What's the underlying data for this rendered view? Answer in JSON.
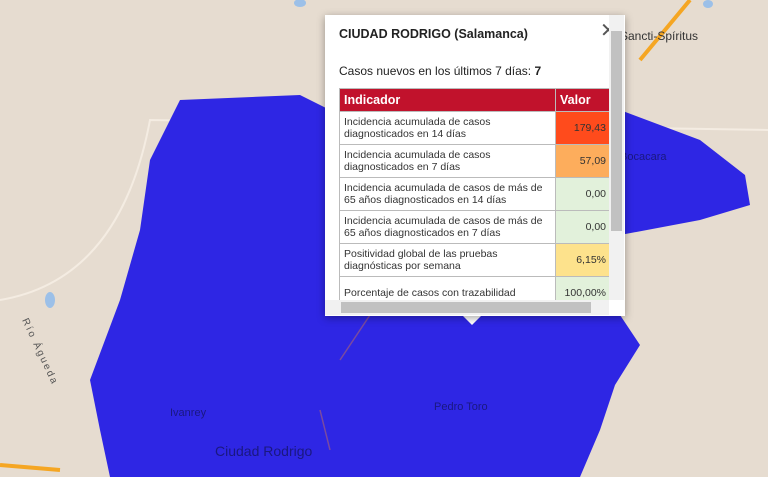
{
  "map": {
    "labels": {
      "town_ne": "Sancti-Spíritus",
      "town_e": "Bocacara",
      "river": "Río Águeda",
      "town_w": "Ivanrey",
      "town_s": "Pedro Toro",
      "city": "Ciudad Rodrigo"
    }
  },
  "popup": {
    "title": "CIUDAD RODRIGO (Salamanca)",
    "cases_label": "Casos nuevos en los últimos 7 días:",
    "cases_value": "7",
    "table": {
      "header": [
        "Indicador",
        "Valor"
      ],
      "rows": [
        {
          "indicator": "Incidencia acumulada de casos diagnosticados en 14 días",
          "value": "179,43",
          "color": "#ff4b1c"
        },
        {
          "indicator": "Incidencia acumulada de casos diagnosticados en 7 días",
          "value": "57,09",
          "color": "#fdad5c"
        },
        {
          "indicator": "Incidencia acumulada de casos de más de 65 años diagnosticados en 14 días",
          "value": "0,00",
          "color": "#e2f1db"
        },
        {
          "indicator": "Incidencia acumulada de casos de más de 65 años diagnosticados en 7 días",
          "value": "0,00",
          "color": "#e2f1db"
        },
        {
          "indicator": "Positividad global de las pruebas diagnósticas por semana",
          "value": "6,15%",
          "color": "#fde28c"
        },
        {
          "indicator": "Porcentaje de casos con trazabilidad",
          "value": "100,00%",
          "color": "#e2f1db"
        }
      ]
    }
  }
}
